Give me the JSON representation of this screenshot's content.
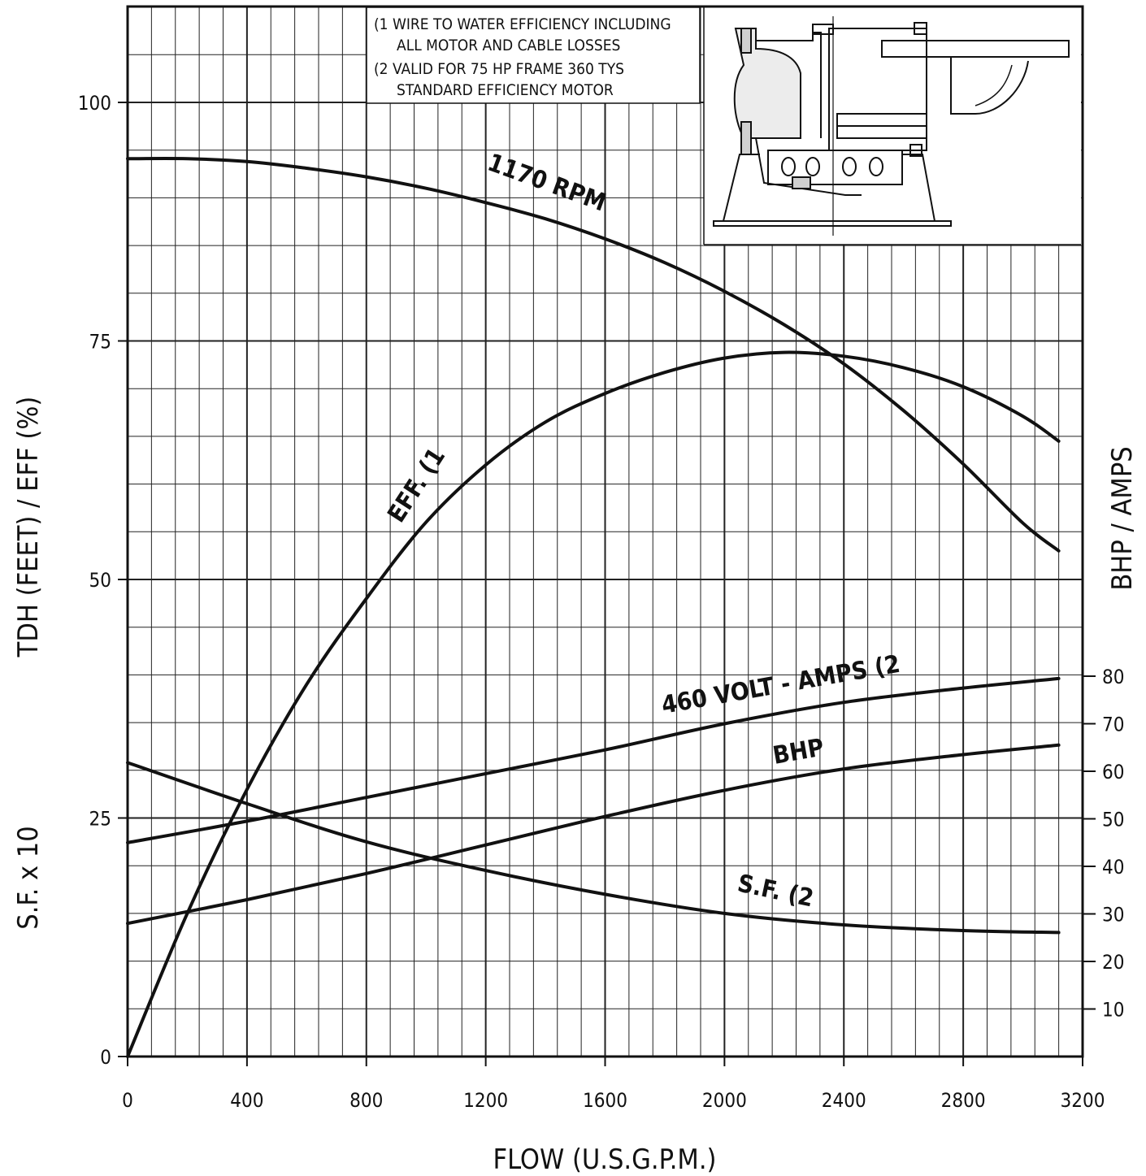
{
  "chart_data": {
    "type": "line",
    "xlabel": "FLOW (U.S.G.P.M.)",
    "ylabel_left": "TDH (FEET) / EFF (%)",
    "ylabel_left_lower": "S.F. x 10",
    "ylabel_right": "BHP / AMPS",
    "x_ticks": [
      0,
      400,
      800,
      1200,
      1600,
      2000,
      2400,
      2800,
      3200
    ],
    "y_left_ticks": [
      0,
      25,
      50,
      75,
      100
    ],
    "y_right_ticks": [
      10,
      20,
      30,
      40,
      50,
      60,
      70,
      80
    ],
    "xlim": [
      0,
      3200
    ],
    "ylim_left": [
      0,
      110
    ],
    "y_right_range": [
      0,
      80
    ],
    "grid": true,
    "notes": [
      "(1 WIRE TO WATER EFFICIENCY INCLUDING",
      "ALL MOTOR AND CABLE LOSSES",
      "(2 VALID FOR 75 HP FRAME 360 TYS",
      "STANDARD EFFICIENCY MOTOR"
    ],
    "series": [
      {
        "name": "1170 RPM",
        "axis": "left",
        "x": [
          0,
          200,
          400,
          600,
          800,
          1000,
          1200,
          1400,
          1600,
          1800,
          2000,
          2200,
          2400,
          2600,
          2800,
          3000,
          3120
        ],
        "y": [
          94.1,
          94.1,
          93.8,
          93.1,
          92.2,
          91.0,
          89.5,
          87.8,
          85.7,
          83.2,
          80.2,
          76.7,
          72.6,
          67.7,
          62.1,
          55.9,
          53.0
        ]
      },
      {
        "name": "EFF. (1",
        "axis": "left",
        "x": [
          0,
          200,
          400,
          600,
          800,
          1000,
          1200,
          1400,
          1600,
          1800,
          2000,
          2200,
          2400,
          2600,
          2800,
          3000,
          3120
        ],
        "y": [
          0,
          15,
          28,
          39,
          48,
          56,
          62,
          66.5,
          69.5,
          71.7,
          73.2,
          73.8,
          73.4,
          72.2,
          70.2,
          67.1,
          64.5
        ]
      },
      {
        "name": "460 VOLT - AMPS (2",
        "axis": "right",
        "x": [
          0,
          400,
          800,
          1200,
          1600,
          2000,
          2400,
          2800,
          3120
        ],
        "y": [
          45,
          49.5,
          54.5,
          59.5,
          64.5,
          70,
          74.5,
          77.5,
          79.5
        ]
      },
      {
        "name": "BHP",
        "axis": "right",
        "x": [
          0,
          400,
          800,
          1200,
          1600,
          2000,
          2400,
          2800,
          3120
        ],
        "y": [
          28,
          33,
          38.5,
          44.5,
          50.5,
          56,
          60.5,
          63.5,
          65.5
        ]
      },
      {
        "name": "S.F. (2",
        "axis": "left",
        "x": [
          0,
          400,
          800,
          1200,
          1600,
          2000,
          2400,
          2800,
          3120
        ],
        "y": [
          30.8,
          26.5,
          22.5,
          19.5,
          17,
          15,
          13.8,
          13.2,
          13
        ]
      }
    ]
  },
  "colors": {
    "line": "#111111",
    "grid": "#222222",
    "background": "#ffffff"
  }
}
